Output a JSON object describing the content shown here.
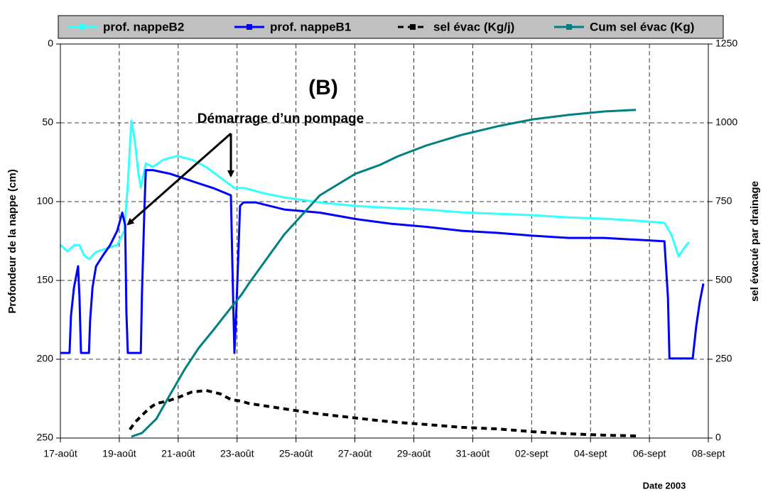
{
  "chart_data": {
    "type": "line",
    "annotations": [
      "(B)",
      "Démarrage d’un pompage"
    ],
    "ylabel": "Profondeur de la nappe (cm)",
    "y2label": "sel évacué par drainage",
    "xlabel": "Date 2003",
    "xlim": [
      0,
      22
    ],
    "xticks": [
      {
        "value": 0,
        "label": "17-août"
      },
      {
        "value": 2,
        "label": "19-août"
      },
      {
        "value": 4,
        "label": "21-août"
      },
      {
        "value": 6,
        "label": "23-août"
      },
      {
        "value": 8,
        "label": "25-août"
      },
      {
        "value": 10,
        "label": "27-août"
      },
      {
        "value": 12,
        "label": "29-août"
      },
      {
        "value": 14,
        "label": "31-août"
      },
      {
        "value": 16,
        "label": "02-sept"
      },
      {
        "value": 18,
        "label": "04-sept"
      },
      {
        "value": 20,
        "label": "06-sept"
      },
      {
        "value": 22,
        "label": "08-sept"
      }
    ],
    "ylim": [
      250,
      0
    ],
    "yticks": [
      0,
      50,
      100,
      150,
      200,
      250
    ],
    "y2lim": [
      0,
      1250
    ],
    "y2ticks": [
      0,
      250,
      500,
      750,
      1000,
      1250
    ],
    "grid": true,
    "legend": "top",
    "series": [
      {
        "name": "prof. nappeB2",
        "color": "#33ffff",
        "dash": false,
        "x": [
          0,
          0.24,
          0.48,
          0.65,
          0.8,
          0.97,
          1.21,
          1.57,
          1.93,
          2.17,
          2.29,
          2.41,
          2.53,
          2.65,
          2.73,
          2.9,
          3.14,
          3.5,
          3.98,
          4.46,
          4.95,
          5.43,
          5.91,
          6.27,
          6.88,
          7.6,
          8.81,
          10.01,
          11.22,
          12.42,
          13.63,
          14.84,
          16.04,
          17.25,
          18.46,
          19.66,
          20.51,
          20.75,
          20.99,
          21.23,
          21.35
        ],
        "values": [
          127.5,
          131.5,
          127.5,
          127.5,
          134,
          136.5,
          132,
          129.7,
          127.5,
          118.5,
          89,
          48.6,
          62,
          82.4,
          91,
          75.7,
          78,
          73.4,
          71,
          73.4,
          78,
          84.7,
          91.4,
          91.4,
          94.6,
          97.3,
          100.5,
          102.7,
          104,
          105,
          106.8,
          107.7,
          108.6,
          110,
          110.8,
          112.2,
          113.5,
          121,
          134.7,
          128,
          125.7
        ]
      },
      {
        "name": "prof. nappeB1",
        "color": "#0000ff",
        "dash": false,
        "x": [
          0,
          0.31,
          0.36,
          0.46,
          0.6,
          0.65,
          0.7,
          0.97,
          1.01,
          1.09,
          1.21,
          1.45,
          1.69,
          1.93,
          2.1,
          2.2,
          2.24,
          2.29,
          2.73,
          2.77,
          2.85,
          2.9,
          3.14,
          3.74,
          4.46,
          5.19,
          5.79,
          5.86,
          5.91,
          5.98,
          6.1,
          6.22,
          6.63,
          7.6,
          8.81,
          10.01,
          11.22,
          12.42,
          13.63,
          14.84,
          16.04,
          17.25,
          18.46,
          19.66,
          20.51,
          20.63,
          20.68,
          21.47,
          21.59,
          21.71,
          21.83
        ],
        "values": [
          196,
          196,
          172.5,
          154.5,
          141,
          161,
          196,
          196,
          175,
          154.5,
          141,
          134,
          127.5,
          118.5,
          107,
          115,
          170,
          196,
          196,
          159,
          107,
          80,
          80,
          82.4,
          87,
          91.4,
          96,
          156.8,
          196,
          165.8,
          102.7,
          100.5,
          100.5,
          105,
          107,
          111,
          114,
          116,
          118.5,
          119.8,
          121.6,
          123,
          123,
          124.3,
          125.2,
          161,
          199.5,
          199.5,
          179,
          163.5,
          152
        ]
      },
      {
        "name": "sel évac (Kg/j)",
        "color": "#000000",
        "axis": "y2",
        "dash": true,
        "x": [
          2.36,
          2.53,
          2.77,
          3.02,
          3.26,
          3.62,
          3.98,
          4.46,
          4.95,
          5.43,
          5.79,
          6.15,
          6.39,
          8.56,
          10.74,
          11.46,
          12.42,
          13.63,
          14.84,
          16.04,
          17.25,
          18.46,
          19.54
        ],
        "values": [
          27,
          49.5,
          72,
          94.6,
          110,
          117,
          128,
          146,
          151,
          140,
          122,
          117,
          110,
          79,
          56,
          49.5,
          43,
          34,
          29,
          20,
          13.5,
          9,
          6.8
        ]
      },
      {
        "name": "Cum sel évac (Kg)",
        "color": "#008080",
        "axis": "y2",
        "dash": false,
        "x": [
          2.41,
          2.77,
          3.26,
          3.74,
          4.22,
          4.7,
          5.19,
          5.67,
          6.15,
          6.39,
          7.6,
          8.81,
          10.01,
          10.86,
          11.46,
          12.42,
          13.63,
          14.84,
          16.04,
          17.25,
          18.46,
          19.54
        ],
        "values": [
          4.5,
          16,
          61,
          140,
          218,
          286,
          342,
          399,
          455,
          489,
          646,
          770,
          838,
          867,
          894,
          928,
          962,
          989,
          1011,
          1025,
          1036,
          1041
        ]
      }
    ]
  }
}
